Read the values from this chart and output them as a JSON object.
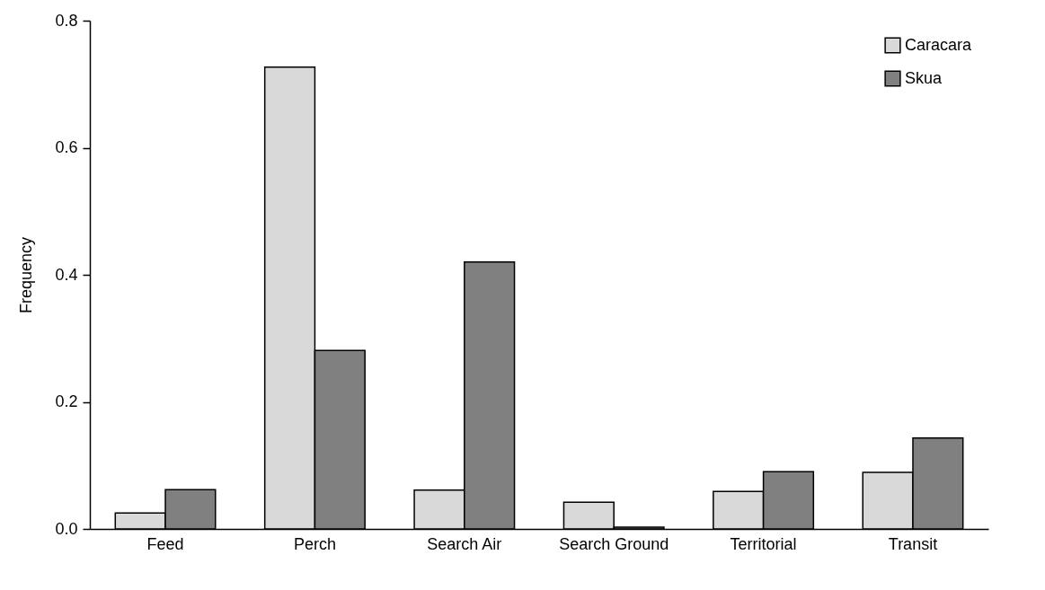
{
  "chart_data": {
    "type": "bar",
    "ylabel": "Frequency",
    "categories": [
      "Feed",
      "Perch",
      "Search Air",
      "Search Ground",
      "Territorial",
      "Transit"
    ],
    "series": [
      {
        "name": "Caracara",
        "color": "#d9d9d9",
        "values": [
          0.025,
          0.727,
          0.061,
          0.042,
          0.059,
          0.089
        ]
      },
      {
        "name": "Skua",
        "color": "#808080",
        "values": [
          0.062,
          0.281,
          0.42,
          0.003,
          0.09,
          0.143
        ]
      }
    ],
    "ylim": [
      0,
      0.8
    ],
    "yticks": [
      {
        "value": 0,
        "label": "0.0"
      },
      0.2,
      0.4,
      0.6,
      0.8
    ],
    "grid": false,
    "legend": "top right"
  }
}
